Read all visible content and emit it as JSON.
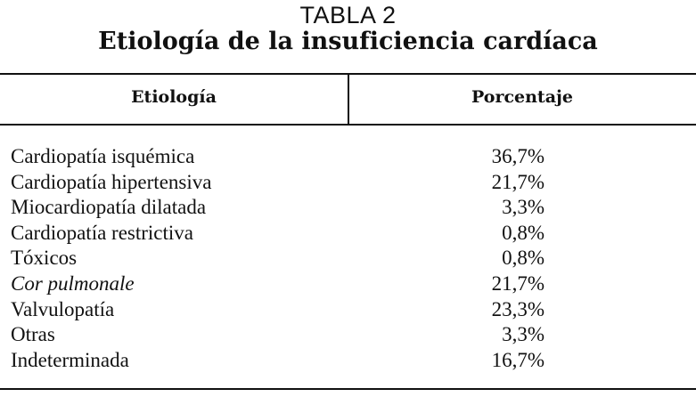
{
  "header": {
    "label": "TABLA 2",
    "title": "Etiología de la insuficiencia cardíaca"
  },
  "table": {
    "columns": [
      "Etiología",
      "Porcentaje"
    ],
    "rows": [
      [
        "Cardiopatía isquémica",
        "36,7%"
      ],
      [
        "Cardiopatía hipertensiva",
        "21,7%"
      ],
      [
        "Miocardiopatía dilatada",
        "3,3%"
      ],
      [
        "Cardiopatía restrictiva",
        "0,8%"
      ],
      [
        "Tóxicos",
        "0,8%"
      ],
      [
        "Cor pulmonale",
        "21,7%"
      ],
      [
        "Valvulopatía",
        "23,3%"
      ],
      [
        "Otras",
        "3,3%"
      ],
      [
        "Indeterminada",
        "16,7%"
      ]
    ]
  }
}
